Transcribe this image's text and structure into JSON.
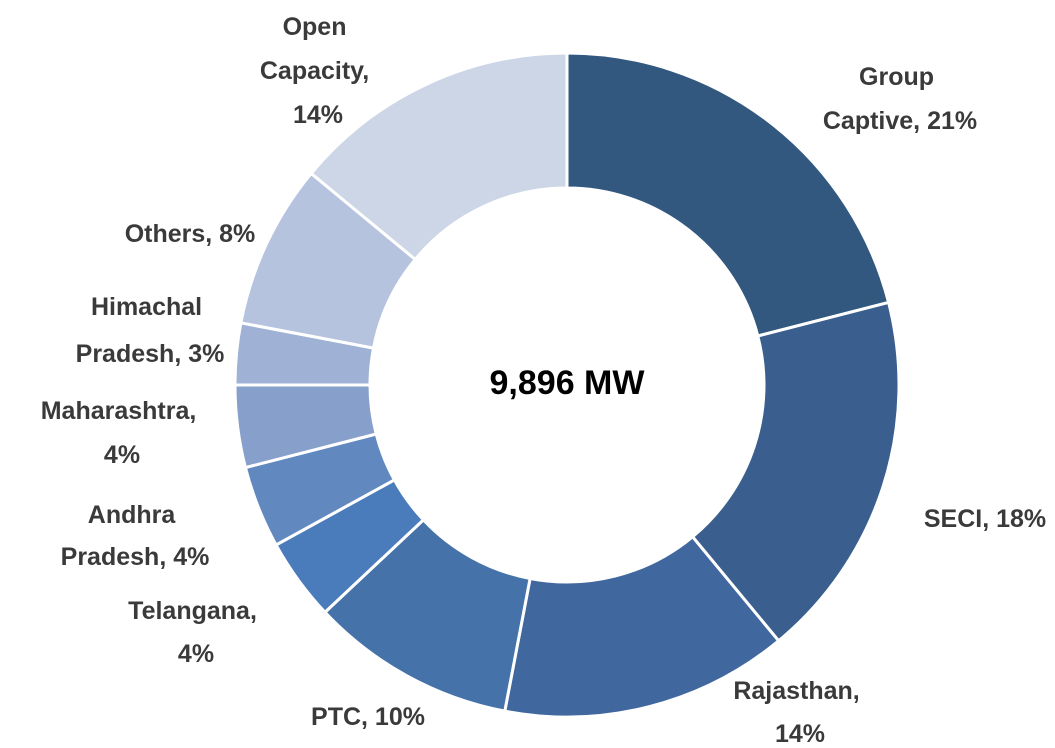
{
  "chart_data": {
    "type": "donut",
    "center_label": "9,896 MW",
    "values": [
      21,
      18,
      14,
      10,
      4,
      4,
      4,
      3,
      8,
      14
    ],
    "value_labels": [
      "Group Captive, 21%",
      "SECI, 18%",
      "Rajasthan, 14%",
      "PTC, 10%",
      "Telangana, 4%",
      "Andhra Pradesh, 4%",
      "Maharashtra, 4%",
      "Himachal Pradesh, 3%",
      "Others, 8%",
      "Open Capacity, 14%"
    ],
    "colors": [
      "#335880",
      "#3a5f8e",
      "#40689e",
      "#4672aa",
      "#4a7bbb",
      "#6189c0",
      "#879fcb",
      "#9fb2d5",
      "#b5c3de",
      "#ccd6e7"
    ]
  }
}
